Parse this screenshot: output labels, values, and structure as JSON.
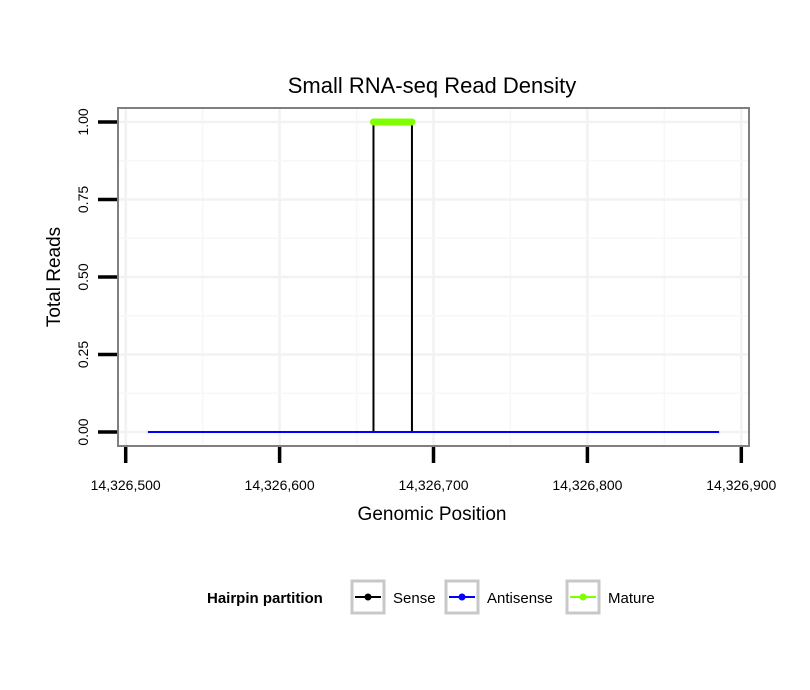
{
  "chart_data": {
    "type": "line",
    "title": "Small RNA-seq Read Density",
    "xlabel": "Genomic Position",
    "ylabel": "Total Reads",
    "xlim": [
      14326495,
      14326905
    ],
    "ylim": [
      -0.045,
      1.045
    ],
    "xticks": [
      14326500,
      14326600,
      14326700,
      14326800,
      14326900
    ],
    "xtick_labels": [
      "14,326,500",
      "14,326,600",
      "14,326,700",
      "14,326,800",
      "14,326,900"
    ],
    "yticks": [
      0,
      0.25,
      0.5,
      0.75,
      1.0
    ],
    "ytick_labels": [
      "0.00",
      "0.25",
      "0.50",
      "0.75",
      "1.00"
    ],
    "grid": true,
    "series": [
      {
        "name": "Sense",
        "color": "#000000",
        "x": [
          14326515,
          14326661,
          14326661,
          14326686,
          14326686,
          14326885
        ],
        "y": [
          0,
          0,
          1,
          1,
          0,
          0
        ]
      },
      {
        "name": "Antisense",
        "color": "#0000ff",
        "x": [
          14326515,
          14326885
        ],
        "y": [
          0,
          0
        ]
      },
      {
        "name": "Mature",
        "color": "#7fff00",
        "x": [
          14326661,
          14326686
        ],
        "y": [
          1,
          1
        ]
      }
    ],
    "legend": {
      "title": "Hairpin partition",
      "position": "bottom",
      "entries": [
        "Sense",
        "Antisense",
        "Mature"
      ]
    }
  }
}
